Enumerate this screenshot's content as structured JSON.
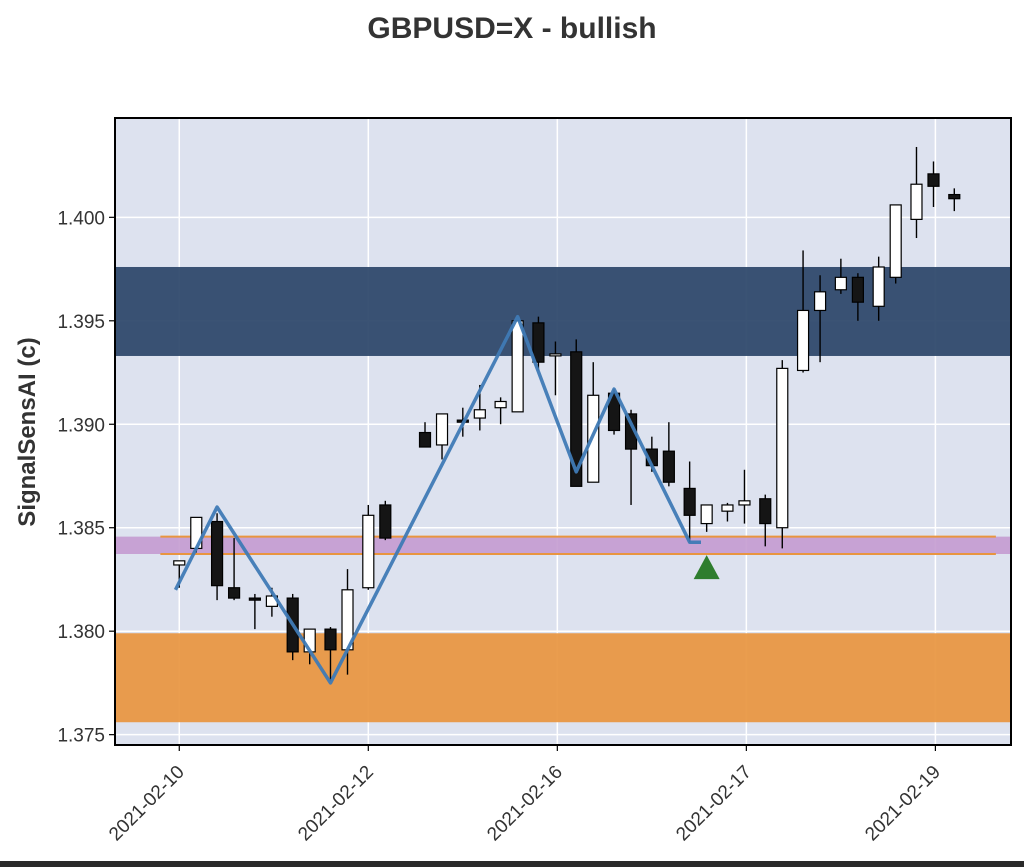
{
  "chart_data": {
    "type": "candlestick",
    "title": "GBPUSD=X - bullish",
    "ylabel": "SignalSensAI (c)",
    "xlabel": "",
    "ylim": [
      1.3745,
      1.4048
    ],
    "yticks": [
      "1.375",
      "1.380",
      "1.385",
      "1.390",
      "1.395",
      "1.400"
    ],
    "xlim": [
      -1.7,
      22.0
    ],
    "xticks": [
      {
        "label": "2021-02-10",
        "at": 0
      },
      {
        "label": "2021-02-12",
        "at": 5
      },
      {
        "label": "2021-02-16",
        "at": 10
      },
      {
        "label": "2021-02-17",
        "at": 15
      },
      {
        "label": "2021-02-19",
        "at": 20
      }
    ],
    "grid": true,
    "colors": {
      "background": "#dde2ef",
      "up_candle": "#ffffff",
      "down_candle": "#151515",
      "zigzag": "#3f7ab5",
      "resistance_zone": "#2a4468",
      "support_zone": "#e8953f",
      "pivot_band": "#c49bd0",
      "pivot_lines": "#e8953f",
      "signal_marker": "#2e7d2e"
    },
    "zones": [
      {
        "kind": "resistance",
        "low": 1.3933,
        "high": 1.3976
      },
      {
        "kind": "support",
        "low": 1.3756,
        "high": 1.3799
      }
    ],
    "pivot_band": {
      "low": 1.38373,
      "high": 1.38457,
      "line_start": -0.5
    },
    "candles": [
      {
        "x": 0.0,
        "o": 1.3832,
        "h": 1.3834,
        "l": 1.3821,
        "c": 1.3834
      },
      {
        "x": 0.45,
        "o": 1.384,
        "h": 1.3855,
        "l": 1.3838,
        "c": 1.3855
      },
      {
        "x": 1.0,
        "o": 1.3853,
        "h": 1.3857,
        "l": 1.3815,
        "c": 1.3822
      },
      {
        "x": 1.45,
        "o": 1.3821,
        "h": 1.3845,
        "l": 1.3815,
        "c": 1.3816
      },
      {
        "x": 2.0,
        "o": 1.3816,
        "h": 1.3818,
        "l": 1.3801,
        "c": 1.3815
      },
      {
        "x": 2.45,
        "o": 1.3812,
        "h": 1.3821,
        "l": 1.3807,
        "c": 1.3817
      },
      {
        "x": 3.0,
        "o": 1.3816,
        "h": 1.3818,
        "l": 1.3786,
        "c": 1.379
      },
      {
        "x": 3.45,
        "o": 1.379,
        "h": 1.3801,
        "l": 1.3784,
        "c": 1.3801
      },
      {
        "x": 4.0,
        "o": 1.3801,
        "h": 1.3802,
        "l": 1.3776,
        "c": 1.3791
      },
      {
        "x": 4.45,
        "o": 1.3791,
        "h": 1.383,
        "l": 1.3779,
        "c": 1.382
      },
      {
        "x": 5.0,
        "o": 1.3821,
        "h": 1.3861,
        "l": 1.382,
        "c": 1.3856
      },
      {
        "x": 5.45,
        "o": 1.3861,
        "h": 1.3863,
        "l": 1.3844,
        "c": 1.3845
      },
      {
        "x": 6.5,
        "o": 1.3896,
        "h": 1.3901,
        "l": 1.3889,
        "c": 1.3889
      },
      {
        "x": 6.95,
        "o": 1.389,
        "h": 1.3905,
        "l": 1.3883,
        "c": 1.3905
      },
      {
        "x": 7.5,
        "o": 1.3902,
        "h": 1.3908,
        "l": 1.3894,
        "c": 1.3901
      },
      {
        "x": 7.95,
        "o": 1.3903,
        "h": 1.3919,
        "l": 1.3897,
        "c": 1.3907
      },
      {
        "x": 8.5,
        "o": 1.3908,
        "h": 1.3913,
        "l": 1.39,
        "c": 1.3911
      },
      {
        "x": 8.95,
        "o": 1.3906,
        "h": 1.395,
        "l": 1.3906,
        "c": 1.395
      },
      {
        "x": 9.5,
        "o": 1.3949,
        "h": 1.3952,
        "l": 1.3926,
        "c": 1.393
      },
      {
        "x": 9.95,
        "o": 1.3934,
        "h": 1.394,
        "l": 1.3914,
        "c": 1.3934
      },
      {
        "x": 10.5,
        "o": 1.3935,
        "h": 1.3941,
        "l": 1.387,
        "c": 1.387
      },
      {
        "x": 10.95,
        "o": 1.3872,
        "h": 1.393,
        "l": 1.3872,
        "c": 1.3914
      },
      {
        "x": 11.5,
        "o": 1.3915,
        "h": 1.3917,
        "l": 1.3895,
        "c": 1.3897
      },
      {
        "x": 11.95,
        "o": 1.3905,
        "h": 1.3907,
        "l": 1.3861,
        "c": 1.3888
      },
      {
        "x": 12.5,
        "o": 1.3888,
        "h": 1.3894,
        "l": 1.3877,
        "c": 1.388
      },
      {
        "x": 12.95,
        "o": 1.3887,
        "h": 1.3901,
        "l": 1.387,
        "c": 1.3872
      },
      {
        "x": 13.5,
        "o": 1.3869,
        "h": 1.3882,
        "l": 1.3843,
        "c": 1.3856
      },
      {
        "x": 13.95,
        "o": 1.3852,
        "h": 1.3861,
        "l": 1.3848,
        "c": 1.3861
      },
      {
        "x": 14.5,
        "o": 1.3858,
        "h": 1.3862,
        "l": 1.3853,
        "c": 1.3861
      },
      {
        "x": 14.95,
        "o": 1.3861,
        "h": 1.3878,
        "l": 1.3852,
        "c": 1.3863
      },
      {
        "x": 15.5,
        "o": 1.3864,
        "h": 1.3866,
        "l": 1.3841,
        "c": 1.3852
      },
      {
        "x": 15.95,
        "o": 1.385,
        "h": 1.3931,
        "l": 1.384,
        "c": 1.3927
      },
      {
        "x": 16.5,
        "o": 1.3926,
        "h": 1.3984,
        "l": 1.3925,
        "c": 1.3955
      },
      {
        "x": 16.95,
        "o": 1.3955,
        "h": 1.3972,
        "l": 1.393,
        "c": 1.3964
      },
      {
        "x": 17.5,
        "o": 1.3965,
        "h": 1.398,
        "l": 1.3963,
        "c": 1.3971
      },
      {
        "x": 17.95,
        "o": 1.3971,
        "h": 1.3973,
        "l": 1.395,
        "c": 1.3959
      },
      {
        "x": 18.5,
        "o": 1.3957,
        "h": 1.3981,
        "l": 1.395,
        "c": 1.3976
      },
      {
        "x": 18.95,
        "o": 1.3971,
        "h": 1.4006,
        "l": 1.3968,
        "c": 1.4006
      },
      {
        "x": 19.5,
        "o": 1.3999,
        "h": 1.4034,
        "l": 1.399,
        "c": 1.4016
      },
      {
        "x": 19.95,
        "o": 1.4021,
        "h": 1.4027,
        "l": 1.4005,
        "c": 1.4015
      },
      {
        "x": 20.5,
        "o": 1.4011,
        "h": 1.4014,
        "l": 1.4003,
        "c": 1.4009
      }
    ],
    "zigzag": [
      [
        -0.1,
        1.382
      ],
      [
        1.0,
        1.386
      ],
      [
        4.0,
        1.3775
      ],
      [
        8.95,
        1.3952
      ],
      [
        10.5,
        1.3877
      ],
      [
        11.5,
        1.3917
      ],
      [
        13.5,
        1.3843
      ],
      [
        13.8,
        1.3843
      ]
    ],
    "signal": {
      "x": 13.95,
      "y": 1.383,
      "kind": "buy"
    }
  }
}
